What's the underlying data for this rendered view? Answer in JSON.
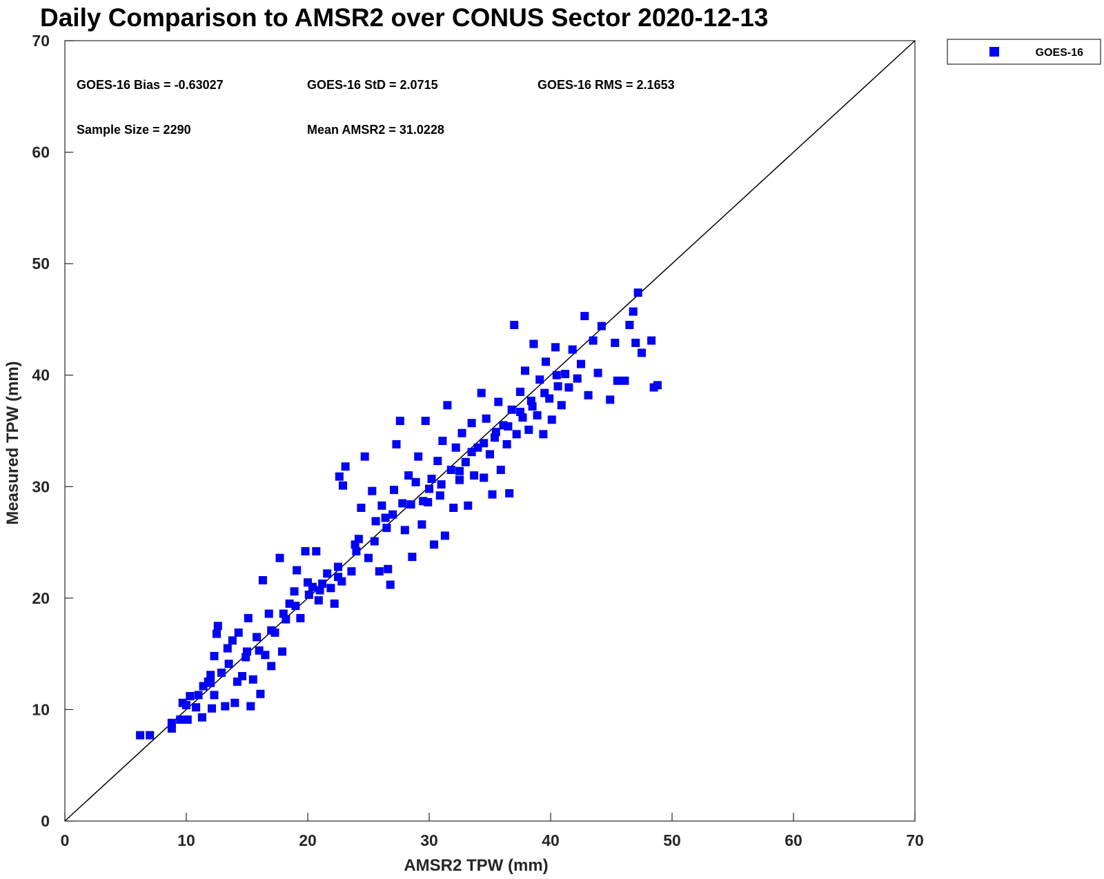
{
  "chart_data": {
    "type": "scatter",
    "title": "Daily Comparison to AMSR2 over CONUS Sector 2020-12-13",
    "xlabel": "AMSR2 TPW (mm)",
    "ylabel": "Measured TPW (mm)",
    "xlim": [
      0,
      70
    ],
    "ylim": [
      0,
      70
    ],
    "xticks": [
      "0",
      "10",
      "20",
      "30",
      "40",
      "50",
      "60",
      "70"
    ],
    "yticks": [
      "0",
      "10",
      "20",
      "30",
      "40",
      "50",
      "60",
      "70"
    ],
    "grid": false,
    "legend": {
      "placement": "top-right, outside plot",
      "entries": [
        "GOES-16"
      ]
    },
    "marker_color": "#0000ff",
    "reference_line": {
      "from": [
        0,
        0
      ],
      "to": [
        70,
        70
      ],
      "color": "#000000"
    },
    "annotations": {
      "bias": "GOES-16 Bias = -0.63027",
      "std": "GOES-16 StD = 2.0715",
      "rms": "GOES-16 RMS = 2.1653",
      "sample_size": "Sample Size = 2290",
      "mean": "Mean AMSR2 = 31.0228"
    },
    "series": [
      {
        "name": "GOES-16",
        "points": [
          [
            6.2,
            7.7
          ],
          [
            7.0,
            7.7
          ],
          [
            8.8,
            8.3
          ],
          [
            8.8,
            8.8
          ],
          [
            9.5,
            9.1
          ],
          [
            10.1,
            9.1
          ],
          [
            9.7,
            10.6
          ],
          [
            10.3,
            11.2
          ],
          [
            10.8,
            10.2
          ],
          [
            11.3,
            9.3
          ],
          [
            11.4,
            12.1
          ],
          [
            11.8,
            12.5
          ],
          [
            12.1,
            10.1
          ],
          [
            12.3,
            11.3
          ],
          [
            12.0,
            13.1
          ],
          [
            12.3,
            14.8
          ],
          [
            12.5,
            16.8
          ],
          [
            12.6,
            17.5
          ],
          [
            12.9,
            13.3
          ],
          [
            13.2,
            10.3
          ],
          [
            13.4,
            15.5
          ],
          [
            13.8,
            16.2
          ],
          [
            14.0,
            10.6
          ],
          [
            14.2,
            12.5
          ],
          [
            14.3,
            16.9
          ],
          [
            14.6,
            13.0
          ],
          [
            14.9,
            14.7
          ],
          [
            15.1,
            18.2
          ],
          [
            15.3,
            10.3
          ],
          [
            15.5,
            12.7
          ],
          [
            15.8,
            16.5
          ],
          [
            16.1,
            11.4
          ],
          [
            16.3,
            21.6
          ],
          [
            16.5,
            14.9
          ],
          [
            16.8,
            18.6
          ],
          [
            17.0,
            13.9
          ],
          [
            17.3,
            16.9
          ],
          [
            17.7,
            23.6
          ],
          [
            17.9,
            15.2
          ],
          [
            18.2,
            18.1
          ],
          [
            18.5,
            19.5
          ],
          [
            18.9,
            20.6
          ],
          [
            19.1,
            22.5
          ],
          [
            19.4,
            18.2
          ],
          [
            19.8,
            24.2
          ],
          [
            20.1,
            20.3
          ],
          [
            20.4,
            21.0
          ],
          [
            20.7,
            24.2
          ],
          [
            20.9,
            19.8
          ],
          [
            21.2,
            21.3
          ],
          [
            21.6,
            22.2
          ],
          [
            21.9,
            20.9
          ],
          [
            22.2,
            19.5
          ],
          [
            22.5,
            22.8
          ],
          [
            22.8,
            21.5
          ],
          [
            23.1,
            31.8
          ],
          [
            22.6,
            30.9
          ],
          [
            22.9,
            30.1
          ],
          [
            23.6,
            22.4
          ],
          [
            23.9,
            24.8
          ],
          [
            24.2,
            25.3
          ],
          [
            24.4,
            28.1
          ],
          [
            24.7,
            32.7
          ],
          [
            25.0,
            23.6
          ],
          [
            25.3,
            29.6
          ],
          [
            25.6,
            26.9
          ],
          [
            25.9,
            22.4
          ],
          [
            26.1,
            28.3
          ],
          [
            26.4,
            27.2
          ],
          [
            26.6,
            22.6
          ],
          [
            26.8,
            21.2
          ],
          [
            27.1,
            29.7
          ],
          [
            27.3,
            33.8
          ],
          [
            27.6,
            35.9
          ],
          [
            27.8,
            28.5
          ],
          [
            28.0,
            26.1
          ],
          [
            28.3,
            31.0
          ],
          [
            28.6,
            23.7
          ],
          [
            28.9,
            30.4
          ],
          [
            29.1,
            32.7
          ],
          [
            29.4,
            26.6
          ],
          [
            29.7,
            35.9
          ],
          [
            29.9,
            28.6
          ],
          [
            30.2,
            30.7
          ],
          [
            30.4,
            24.8
          ],
          [
            30.7,
            32.3
          ],
          [
            30.9,
            29.2
          ],
          [
            31.1,
            34.1
          ],
          [
            31.3,
            25.6
          ],
          [
            31.5,
            37.3
          ],
          [
            31.8,
            31.5
          ],
          [
            32.0,
            28.1
          ],
          [
            32.2,
            33.5
          ],
          [
            32.5,
            30.6
          ],
          [
            32.7,
            34.8
          ],
          [
            33.0,
            32.2
          ],
          [
            33.2,
            28.3
          ],
          [
            33.5,
            35.7
          ],
          [
            33.7,
            31.0
          ],
          [
            34.0,
            33.5
          ],
          [
            34.3,
            38.4
          ],
          [
            34.5,
            30.8
          ],
          [
            34.7,
            36.1
          ],
          [
            35.0,
            32.9
          ],
          [
            35.2,
            29.3
          ],
          [
            35.4,
            34.4
          ],
          [
            35.7,
            37.6
          ],
          [
            35.9,
            31.5
          ],
          [
            36.1,
            35.5
          ],
          [
            36.4,
            33.8
          ],
          [
            36.6,
            29.4
          ],
          [
            36.8,
            36.9
          ],
          [
            37.0,
            44.5
          ],
          [
            37.2,
            34.7
          ],
          [
            37.5,
            38.5
          ],
          [
            37.7,
            36.2
          ],
          [
            37.9,
            40.4
          ],
          [
            38.2,
            35.1
          ],
          [
            38.4,
            37.7
          ],
          [
            38.6,
            42.8
          ],
          [
            38.9,
            36.4
          ],
          [
            39.1,
            39.6
          ],
          [
            39.4,
            34.7
          ],
          [
            39.6,
            41.2
          ],
          [
            39.9,
            37.9
          ],
          [
            40.1,
            36.0
          ],
          [
            40.4,
            42.5
          ],
          [
            40.6,
            39.0
          ],
          [
            40.9,
            37.3
          ],
          [
            41.2,
            40.1
          ],
          [
            41.5,
            38.9
          ],
          [
            41.8,
            42.3
          ],
          [
            42.2,
            39.7
          ],
          [
            42.5,
            41.0
          ],
          [
            42.8,
            45.3
          ],
          [
            43.1,
            38.2
          ],
          [
            43.5,
            43.1
          ],
          [
            43.9,
            40.2
          ],
          [
            44.2,
            44.4
          ],
          [
            44.9,
            37.8
          ],
          [
            45.3,
            42.9
          ],
          [
            45.5,
            39.5
          ],
          [
            46.1,
            39.5
          ],
          [
            46.5,
            44.5
          ],
          [
            46.8,
            45.7
          ],
          [
            47.0,
            42.9
          ],
          [
            47.2,
            47.4
          ],
          [
            47.5,
            42.0
          ],
          [
            48.3,
            43.1
          ],
          [
            48.5,
            38.9
          ],
          [
            48.8,
            39.1
          ],
          [
            30.0,
            29.8
          ],
          [
            28.5,
            28.4
          ],
          [
            27.0,
            27.5
          ],
          [
            33.5,
            33.1
          ],
          [
            36.5,
            35.4
          ],
          [
            38.5,
            37.2
          ],
          [
            39.5,
            38.4
          ],
          [
            40.5,
            40.0
          ],
          [
            35.5,
            34.9
          ],
          [
            32.5,
            31.4
          ],
          [
            31.0,
            30.2
          ],
          [
            29.5,
            28.7
          ],
          [
            26.5,
            26.3
          ],
          [
            25.5,
            25.1
          ],
          [
            34.5,
            33.9
          ],
          [
            37.5,
            36.7
          ],
          [
            24.0,
            24.2
          ],
          [
            21.0,
            20.7
          ],
          [
            19.0,
            19.3
          ],
          [
            17.0,
            17.1
          ],
          [
            15.0,
            15.2
          ],
          [
            13.5,
            14.1
          ],
          [
            12.0,
            12.4
          ],
          [
            11.0,
            11.3
          ],
          [
            10.0,
            10.4
          ],
          [
            16.0,
            15.3
          ],
          [
            18.0,
            18.6
          ],
          [
            20.0,
            21.4
          ],
          [
            22.5,
            21.9
          ]
        ]
      }
    ]
  }
}
